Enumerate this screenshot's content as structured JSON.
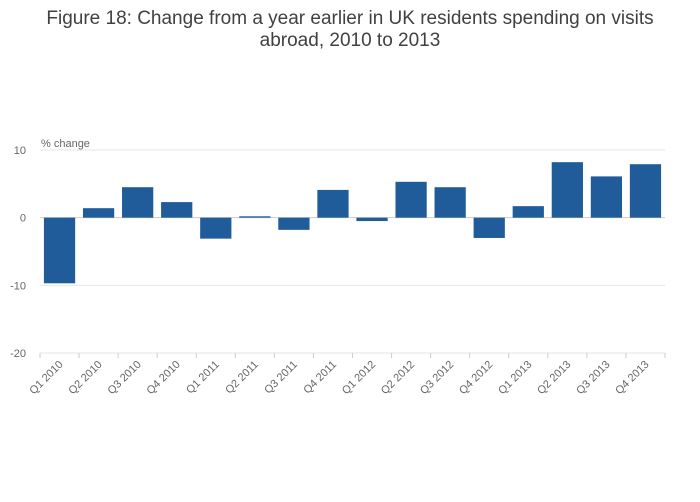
{
  "chart_data": {
    "type": "bar",
    "title_lines": [
      "Figure 18: Change from a year earlier in UK residents spending on visits",
      "abroad, 2010 to 2013"
    ],
    "ylabel": "% change",
    "xlabel": "",
    "ylim": [
      -20,
      10
    ],
    "yticks": [
      10,
      0,
      -10,
      -20
    ],
    "categories": [
      "Q1 2010",
      "Q2 2010",
      "Q3 2010",
      "Q4 2010",
      "Q1 2011",
      "Q2 2011",
      "Q3 2011",
      "Q4 2011",
      "Q1 2012",
      "Q2 2012",
      "Q3 2012",
      "Q4 2012",
      "Q1 2013",
      "Q2 2013",
      "Q3 2013",
      "Q4 2013"
    ],
    "values": [
      -9.7,
      1.4,
      4.5,
      2.3,
      -3.1,
      0.2,
      -1.8,
      4.1,
      -0.5,
      5.3,
      4.5,
      -3.0,
      1.7,
      8.2,
      6.1,
      7.9
    ],
    "bar_color": "#1f5c99",
    "grid": true
  }
}
